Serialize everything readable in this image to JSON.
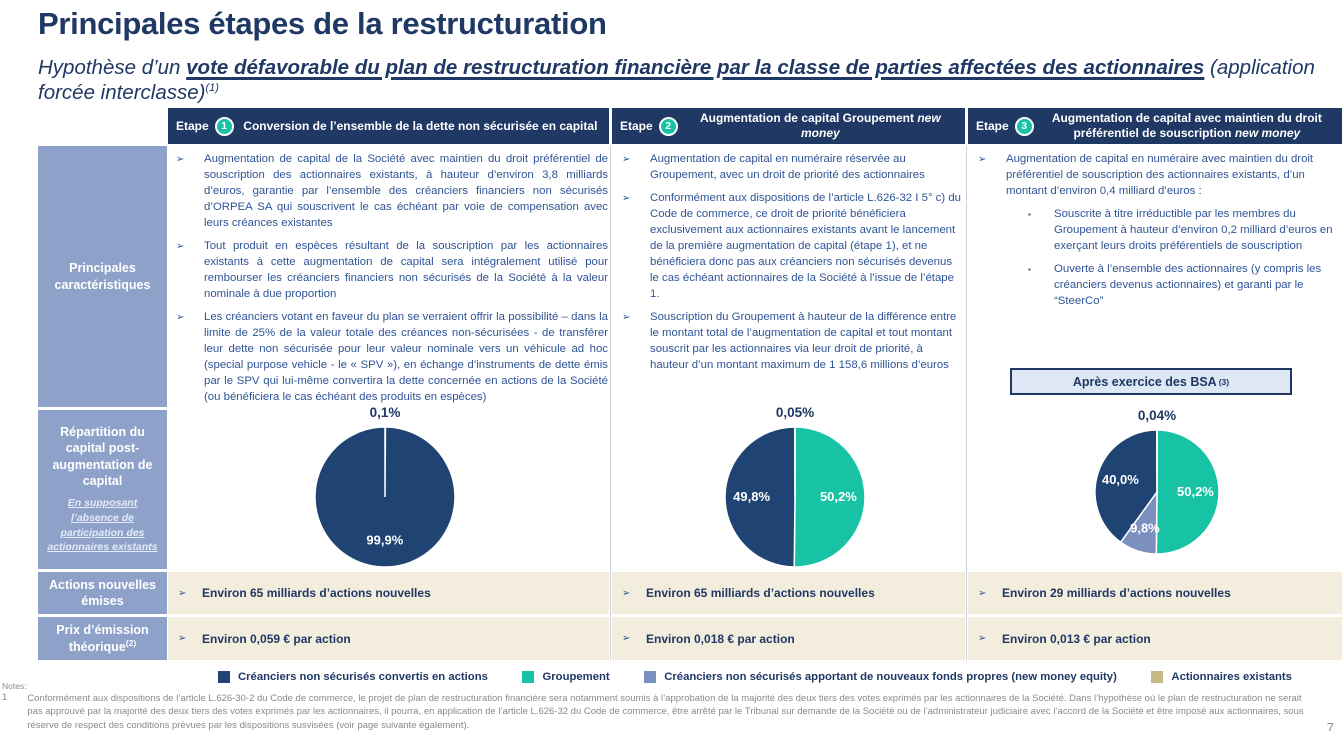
{
  "title": "Principales étapes de la restructuration",
  "subtitle": {
    "prefix": "Hypothèse d’un ",
    "emphasis": "vote défavorable du plan de restructuration financière par la classe de parties affectées des actionnaires",
    "suffix": " (application forcée interclasse)",
    "footnote_ref": "(1)"
  },
  "colors": {
    "navy": "#1F3864",
    "header_navy": "#203864",
    "text_blue": "#2F5496",
    "sidebar_blue": "#8EA2C9",
    "beige": "#F3EDDD",
    "teal": "#17C3A4",
    "pie_navy": "#1F4473",
    "new_money_blue": "#7B90BE",
    "tan": "#C8B787",
    "bsa_bg": "#DEE8F4",
    "divider": "#CBD2DE",
    "note_gray": "#8a8a8a"
  },
  "icons": {
    "bullet": "➢",
    "sub_bullet": "▪"
  },
  "row_labels": {
    "caracteristiques": "Principales caractéristiques",
    "repartition": "Répartition du capital post-augmentation de capital",
    "repartition_note": "En supposant l’absence de participation des actionnaires existants",
    "actions": "Actions nouvelles émises",
    "prix": "Prix d’émission théorique",
    "prix_sup": "(2)"
  },
  "columns": [
    {
      "etape_label": "Etape",
      "etape_num": "1",
      "header": "Conversion de l’ensemble de la dette non sécurisée en capital",
      "header_italic": "",
      "bullets": [
        {
          "text": "Augmentation de capital de la Société avec maintien du droit préférentiel de souscription des actionnaires existants, à hauteur d’environ 3,8 milliards d’euros, garantie par l’ensemble des créanciers financiers non sécurisés d’ORPEA SA qui souscrivent le cas échéant par voie de compensation avec leurs créances existantes"
        },
        {
          "text": "Tout produit en espèces résultant de la souscription par les actionnaires existants à cette augmentation de capital sera intégralement utilisé pour rembourser les créanciers financiers non sécurisés de la Société à la valeur nominale à due proportion"
        },
        {
          "text": "Les créanciers votant en faveur du plan se verraient offrir la possibilité – dans la limite de 25% de la valeur totale des créances non-sécurisées - de transférer leur dette non sécurisée pour leur valeur nominale vers un véhicule ad hoc (special purpose vehicle - le « SPV »), en échange d’instruments de dette émis par le SPV qui lui-même convertira la dette concernée en actions de la Société (ou bénéficiera le cas échéant des produits en espèces)"
        }
      ],
      "actions": "Environ 65 milliards d’actions nouvelles",
      "prix": "Environ 0,059 € par action"
    },
    {
      "etape_label": "Etape",
      "etape_num": "2",
      "header": "Augmentation de capital Groupement ",
      "header_italic": "new money",
      "bullets": [
        {
          "text": "Augmentation de capital en numéraire réservée au Groupement, avec un droit de priorité des actionnaires"
        },
        {
          "text": "Conformément aux dispositions de l’article L.626-32 I 5° c) du Code de commerce, ce droit de priorité bénéficiera exclusivement aux actionnaires existants avant le lancement de la première augmentation de capital (étape 1), et ne bénéficiera donc pas aux créanciers non sécurisés devenus le cas échéant actionnaires de la Société à l’issue de l’étape 1."
        },
        {
          "text": "Souscription du Groupement à hauteur de la différence entre le montant total de l’augmentation de capital et tout montant souscrit par les actionnaires via leur droit de priorité, à hauteur d’un montant maximum de 1 158,6 millions d’euros"
        }
      ],
      "actions": "Environ 65 milliards d’actions nouvelles",
      "prix": "Environ 0,018 € par action"
    },
    {
      "etape_label": "Etape",
      "etape_num": "3",
      "header": "Augmentation de capital avec maintien du droit préférentiel de souscription ",
      "header_italic": "new money",
      "bullets": [
        {
          "text": "Augmentation de capital en numéraire avec maintien du droit préférentiel de souscription des actionnaires existants, d’un montant d’environ 0,4 milliard d’euros :",
          "subs": [
            "Souscrite à titre irréductible par les membres du Groupement à hauteur d’environ 0,2 milliard d’euros en exerçant leurs droits préférentiels de souscription",
            "Ouverte à l’ensemble des actionnaires (y compris les créanciers devenus actionnaires) et garanti par le “SteerCo”"
          ]
        }
      ],
      "actions": "Environ 29 milliards d’actions nouvelles",
      "prix": "Environ 0,013 € par action"
    }
  ],
  "bsa_box": {
    "label": "Après exercice des BSA",
    "sup": "(3)"
  },
  "chart_data": [
    {
      "type": "pie",
      "radius": 70,
      "slices": [
        {
          "name": "Actionnaires existants",
          "value": 0.1,
          "label": "0,1%",
          "color_key": "tan"
        },
        {
          "name": "Créanciers non sécurisés convertis en actions",
          "value": 99.9,
          "label": "99,9%",
          "color_key": "pie_navy"
        }
      ]
    },
    {
      "type": "pie",
      "radius": 70,
      "slices": [
        {
          "name": "Groupement",
          "value": 50.2,
          "label": "50,2%",
          "color_key": "teal"
        },
        {
          "name": "Créanciers non sécurisés convertis en actions",
          "value": 49.8,
          "label": "49,8%",
          "color_key": "pie_navy"
        },
        {
          "name": "Actionnaires existants",
          "value": 0.05,
          "label": "0,05%",
          "color_key": "tan"
        }
      ]
    },
    {
      "type": "pie",
      "radius": 62,
      "slices": [
        {
          "name": "Groupement",
          "value": 50.2,
          "label": "50,2%",
          "color_key": "teal"
        },
        {
          "name": "Créanciers non sécurisés apportant de nouveaux fonds propres (new money equity)",
          "value": 9.8,
          "label": "9,8%",
          "color_key": "new_money_blue"
        },
        {
          "name": "Créanciers non sécurisés convertis en actions",
          "value": 40.0,
          "label": "40,0%",
          "color_key": "pie_navy"
        },
        {
          "name": "Actionnaires existants",
          "value": 0.04,
          "label": "0,04%",
          "color_key": "tan"
        }
      ]
    }
  ],
  "legend": [
    {
      "label": "Créanciers non sécurisés convertis en actions",
      "color_key": "pie_navy"
    },
    {
      "label": "Groupement",
      "color_key": "teal"
    },
    {
      "label": "Créanciers non sécurisés apportant de nouveaux fonds propres (new money equity)",
      "color_key": "new_money_blue"
    },
    {
      "label": "Actionnaires existants",
      "color_key": "tan"
    }
  ],
  "notes": {
    "label": "Notes:",
    "num": "1",
    "text": "Conformément aux dispositions de l’article L.626-30-2 du Code de commerce, le projet de plan de restructuration financière sera notamment soumis à l’approbation de la majorité des deux tiers des votes exprimés par les actionnaires de la Société. Dans l’hypothèse où le plan de restructuration ne serait pas approuvé par la majorité des deux tiers des votes exprimés par les actionnaires, il pourra, en application de l’article L.626-32 du Code de commerce, être arrêté par le Tribunal sur demande de la Société ou de l’administrateur judiciaire avec l’accord de la Société et être imposé aux actionnaires, sous réserve de respect des conditions prévues par les dispositions susvisées (voir page suivante également)."
  },
  "page_number": "7"
}
